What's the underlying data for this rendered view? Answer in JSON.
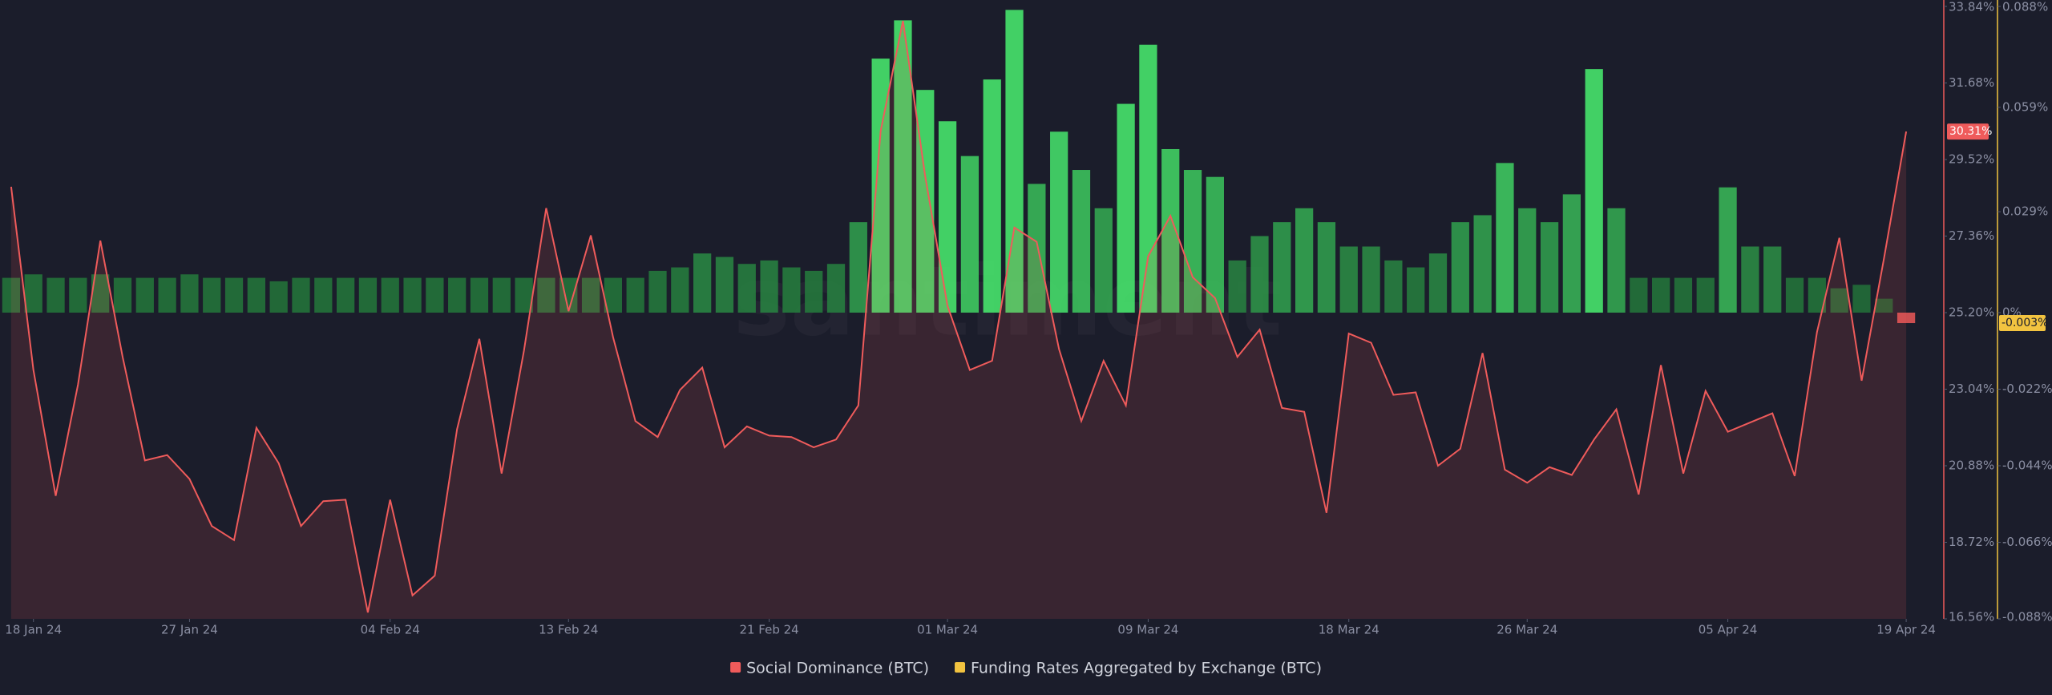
{
  "chart_data": {
    "type": "combo",
    "watermark": "santiment",
    "categories": [
      null,
      "18 Jan 24",
      null,
      null,
      null,
      null,
      null,
      null,
      "27 Jan 24",
      null,
      null,
      null,
      null,
      null,
      null,
      null,
      null,
      "04 Feb 24",
      null,
      null,
      null,
      null,
      null,
      null,
      null,
      "13 Feb 24",
      null,
      null,
      null,
      null,
      null,
      null,
      null,
      null,
      "21 Feb 24",
      null,
      null,
      null,
      null,
      null,
      null,
      null,
      "01 Mar 24",
      null,
      null,
      null,
      null,
      null,
      null,
      null,
      null,
      "09 Mar 24",
      null,
      null,
      null,
      null,
      null,
      null,
      null,
      null,
      "18 Mar 24",
      null,
      null,
      null,
      null,
      null,
      null,
      null,
      "26 Mar 24",
      null,
      null,
      null,
      null,
      null,
      null,
      null,
      null,
      "05 Apr 24",
      null,
      null,
      null,
      null,
      null,
      null,
      null,
      "19 Apr 24"
    ],
    "ylim": [
      16.56,
      33.84
    ],
    "yticks": [
      {
        "value": 33.84,
        "label": "33.84%"
      },
      {
        "value": 31.68,
        "label": "31.68%"
      },
      {
        "value": 29.52,
        "label": "29.52%"
      },
      {
        "value": 27.36,
        "label": "27.36%"
      },
      {
        "value": 25.2,
        "label": "25.20%"
      },
      {
        "value": 23.04,
        "label": "23.04%"
      },
      {
        "value": 20.88,
        "label": "20.88%"
      },
      {
        "value": 18.72,
        "label": "18.72%"
      },
      {
        "value": 16.56,
        "label": "16.56%"
      }
    ],
    "y2lim": [
      -0.088,
      0.088
    ],
    "y2ticks": [
      {
        "value": 0.088,
        "label": "0.088%"
      },
      {
        "value": 0.059,
        "label": "0.059%"
      },
      {
        "value": 0.029,
        "label": "0.029%"
      },
      {
        "value": 0,
        "label": "0%"
      },
      {
        "value": -0.022,
        "label": "-0.022%"
      },
      {
        "value": -0.044,
        "label": "-0.044%"
      },
      {
        "value": -0.066,
        "label": "-0.066%"
      },
      {
        "value": -0.088,
        "label": "-0.088%"
      }
    ],
    "grid": false,
    "series": [
      {
        "name": "Social Dominance (BTC)",
        "type": "area",
        "color": "#ef5b5b",
        "current_label": {
          "value": 30.31,
          "label": "30.31%"
        },
        "values": [
          28.75,
          23.58,
          20.03,
          23.17,
          27.23,
          23.95,
          21.03,
          21.18,
          20.51,
          19.18,
          18.78,
          21.95,
          20.95,
          19.18,
          19.88,
          19.92,
          16.74,
          19.92,
          17.22,
          17.78,
          21.91,
          24.46,
          20.66,
          24.12,
          28.15,
          25.24,
          27.38,
          24.5,
          22.14,
          21.69,
          23.02,
          23.65,
          21.4,
          21.99,
          21.73,
          21.69,
          21.4,
          21.62,
          22.58,
          30.33,
          33.43,
          29.04,
          25.39,
          23.58,
          23.84,
          27.6,
          27.2,
          24.17,
          22.14,
          23.84,
          22.58,
          26.79,
          27.93,
          26.2,
          25.61,
          23.95,
          24.72,
          22.51,
          22.4,
          19.55,
          24.61,
          24.35,
          22.88,
          22.95,
          20.88,
          21.36,
          24.06,
          20.77,
          20.4,
          20.84,
          20.62,
          21.62,
          22.47,
          20.07,
          23.72,
          20.66,
          22.99,
          21.84,
          22.1,
          22.36,
          20.59,
          24.65,
          27.31,
          23.28,
          26.72,
          30.31
        ]
      },
      {
        "name": "Funding Rates Aggregated by Exchange (BTC)",
        "type": "bar",
        "axis": "y2",
        "color": "#f2c340",
        "bar_colors": [
          "#1c5a2f",
          "#47e46c"
        ],
        "negative_color": "#e05555",
        "current_label": {
          "value": -0.003,
          "label": "-0.003%"
        },
        "values": [
          0.01,
          0.011,
          0.01,
          0.01,
          0.011,
          0.01,
          0.01,
          0.01,
          0.011,
          0.01,
          0.01,
          0.01,
          0.009,
          0.01,
          0.01,
          0.01,
          0.01,
          0.01,
          0.01,
          0.01,
          0.01,
          0.01,
          0.01,
          0.01,
          0.01,
          0.01,
          0.01,
          0.01,
          0.01,
          0.012,
          0.013,
          0.017,
          0.016,
          0.014,
          0.015,
          0.013,
          0.012,
          0.014,
          0.026,
          0.073,
          0.084,
          0.064,
          0.055,
          0.045,
          0.067,
          0.087,
          0.037,
          0.052,
          0.041,
          0.03,
          0.06,
          0.077,
          0.047,
          0.041,
          0.039,
          0.015,
          0.022,
          0.026,
          0.03,
          0.026,
          0.019,
          0.019,
          0.015,
          0.013,
          0.017,
          0.026,
          0.028,
          0.043,
          0.03,
          0.026,
          0.034,
          0.07,
          0.03,
          0.01,
          0.01,
          0.01,
          0.01,
          0.036,
          0.019,
          0.019,
          0.01,
          0.01,
          0.007,
          0.008,
          0.004,
          -0.003
        ]
      }
    ]
  }
}
